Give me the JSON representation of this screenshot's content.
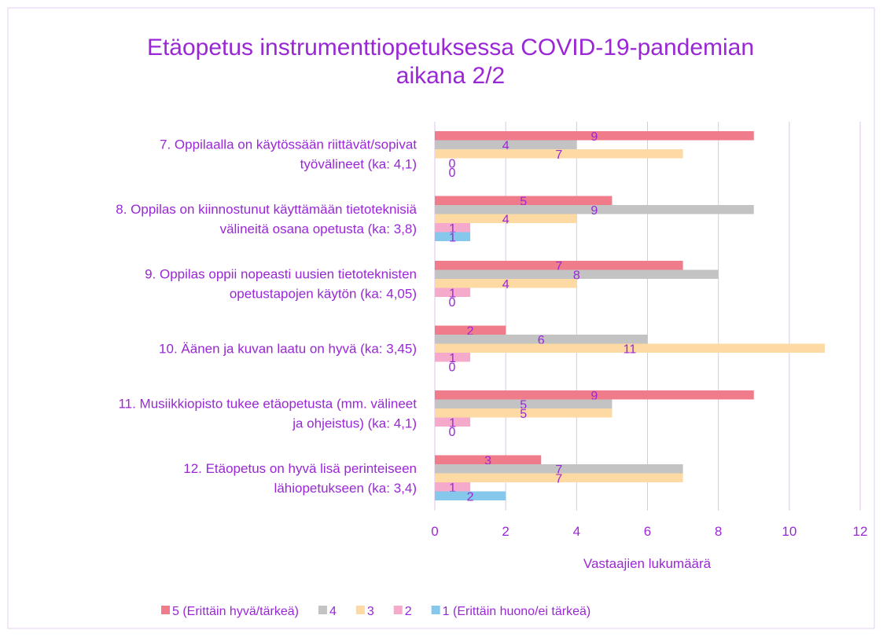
{
  "chart_data": {
    "type": "bar",
    "orientation": "horizontal",
    "title": "Etäopetus instrumenttiopetuksessa COVID-19-pandemian\naikana 2/2",
    "categories": [
      "7. Oppilaalla on käytössään riittävät/sopivat\ntyövälineet (ka: 4,1)",
      "8. Oppilas on kiinnostunut käyttämään tietoteknisiä\nvälineitä osana opetusta (ka: 3,8)",
      "9. Oppilas oppii nopeasti uusien tietoteknisten\nopetustapojen käytön (ka: 4,05)",
      "10. Äänen ja kuvan laatu on hyvä (ka: 3,45)",
      "11. Musiikkiopisto tukee etäopetusta (mm. välineet\nja ohjeistus) (ka: 4,1)",
      "12. Etäopetus on hyvä lisä perinteiseen\nlähiopetukseen (ka: 3,4)"
    ],
    "series": [
      {
        "name": "5 (Erittäin hyvä/tärkeä)",
        "color": "#ef7b8b",
        "values": [
          9,
          5,
          7,
          2,
          9,
          3
        ]
      },
      {
        "name": "4",
        "color": "#c3c3c3",
        "values": [
          4,
          9,
          8,
          6,
          5,
          7
        ]
      },
      {
        "name": "3",
        "color": "#fdd9a3",
        "values": [
          7,
          4,
          4,
          11,
          5,
          7
        ]
      },
      {
        "name": "2",
        "color": "#f5a9cb",
        "values": [
          0,
          1,
          1,
          1,
          1,
          1
        ]
      },
      {
        "name": "1 (Erittäin huono/ei tärkeä)",
        "color": "#86c7ec",
        "values": [
          0,
          1,
          0,
          0,
          0,
          2
        ]
      }
    ],
    "xlabel": "Vastaajien lukumäärä",
    "xlim": [
      0,
      12
    ],
    "xticks": [
      0,
      2,
      4,
      6,
      8,
      10,
      12
    ],
    "grid": true,
    "legend": "bottom"
  }
}
